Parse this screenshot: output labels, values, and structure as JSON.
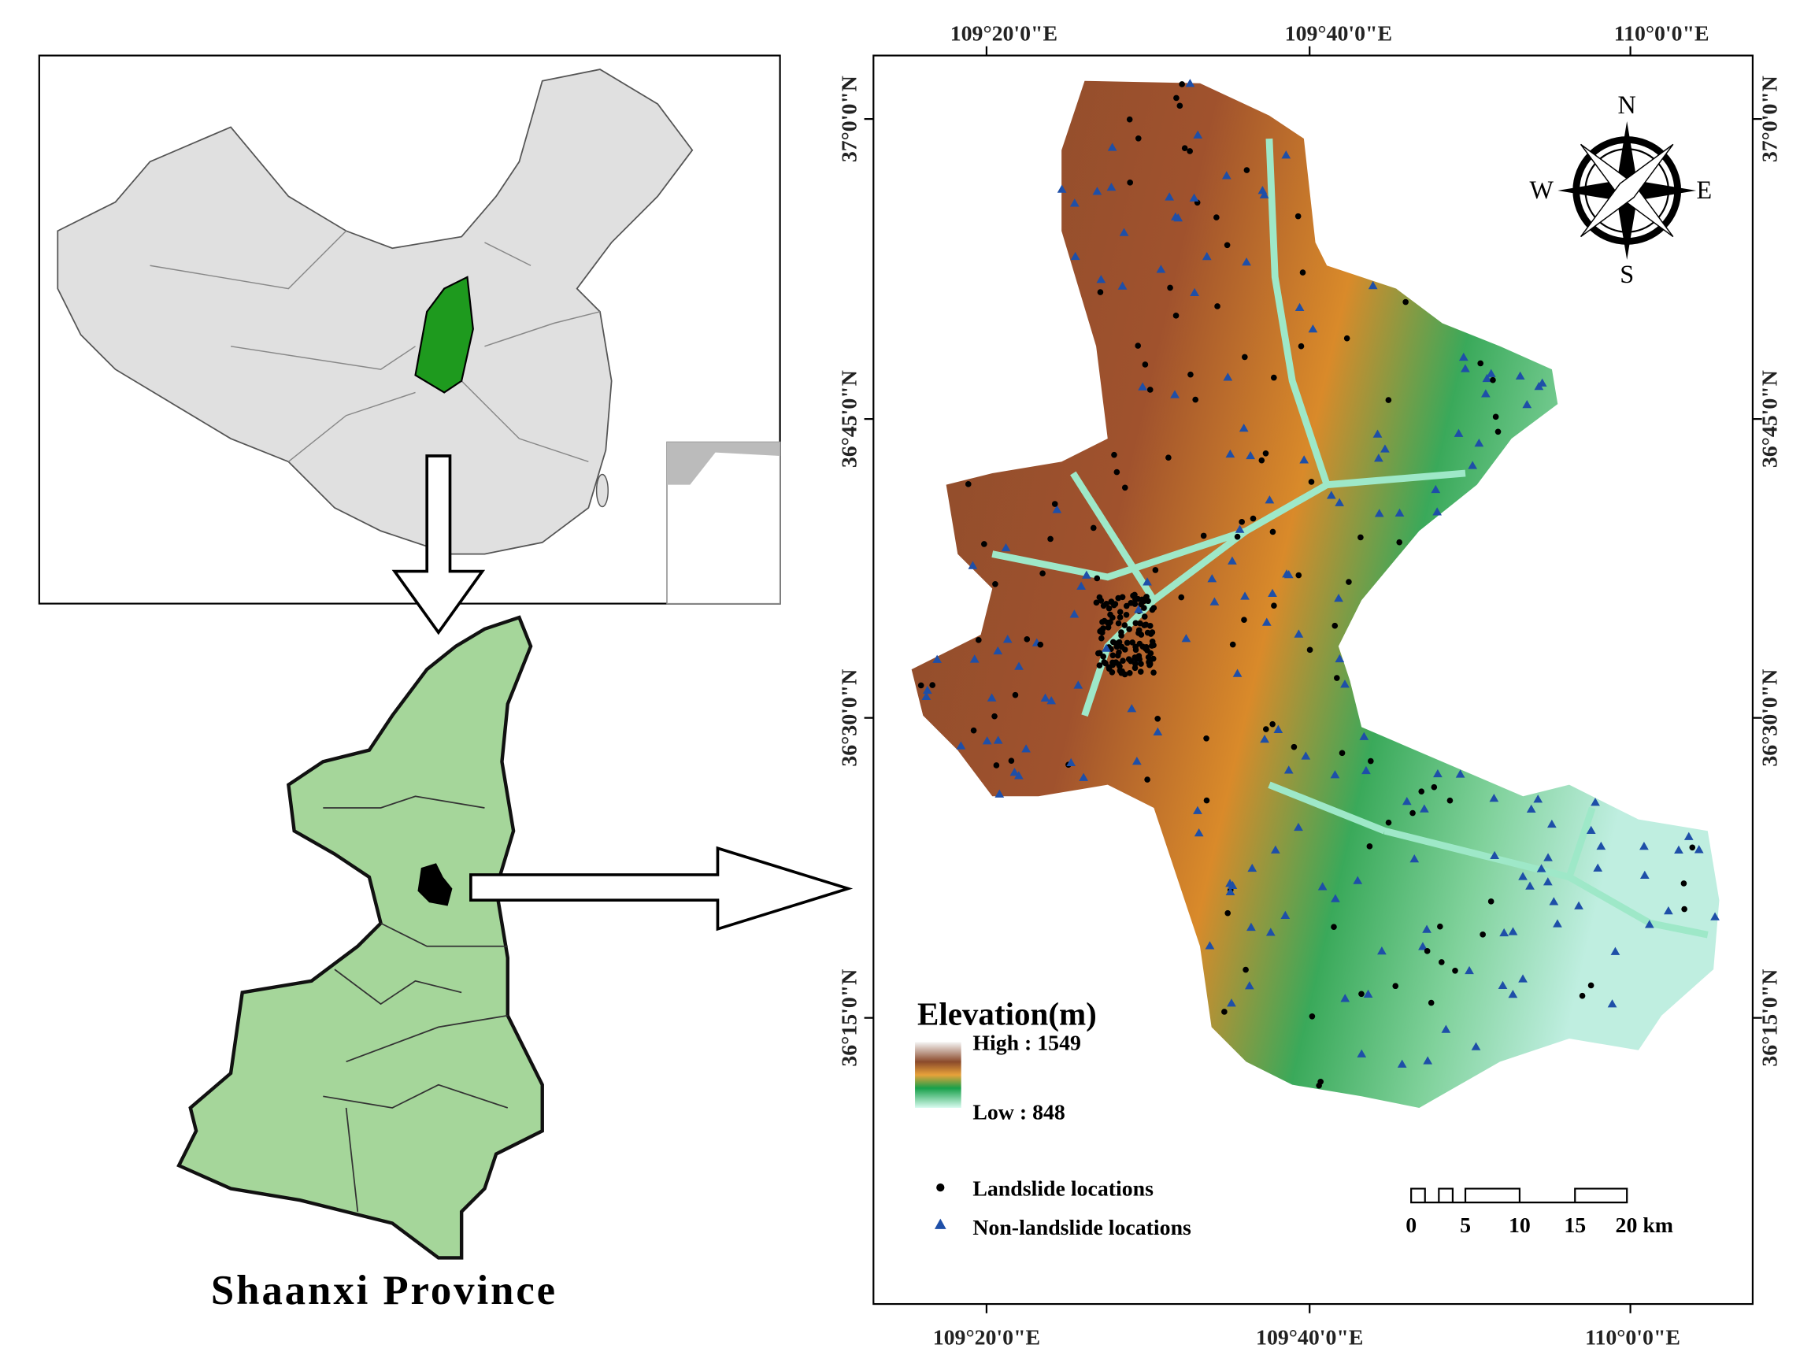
{
  "inset_map": {
    "title": "Shaanxi Province"
  },
  "study_area_map": {
    "top_labels": [
      "109°20'0\"E",
      "109°40'0\"E",
      "110°0'0\"E"
    ],
    "bottom_labels": [
      "109°20'0\"E",
      "109°40'0\"E",
      "110°0'0\"E"
    ],
    "left_labels": [
      "37°0'0\"N",
      "36°45'0\"N",
      "36°30'0\"N",
      "36°15'0\"N"
    ],
    "right_labels": [
      "37°0'0\"N",
      "36°45'0\"N",
      "36°30'0\"N",
      "36°15'0\"N"
    ],
    "compass": {
      "n": "N",
      "s": "S",
      "e": "E",
      "w": "W"
    },
    "legend": {
      "title": "Elevation(m)",
      "high": "High : 1549",
      "low": "Low : 848",
      "landslide": "Landslide locations",
      "non_landslide": "Non-landslide locations"
    },
    "scale_bar": [
      "0",
      "5",
      "10",
      "15",
      "20 km"
    ]
  }
}
